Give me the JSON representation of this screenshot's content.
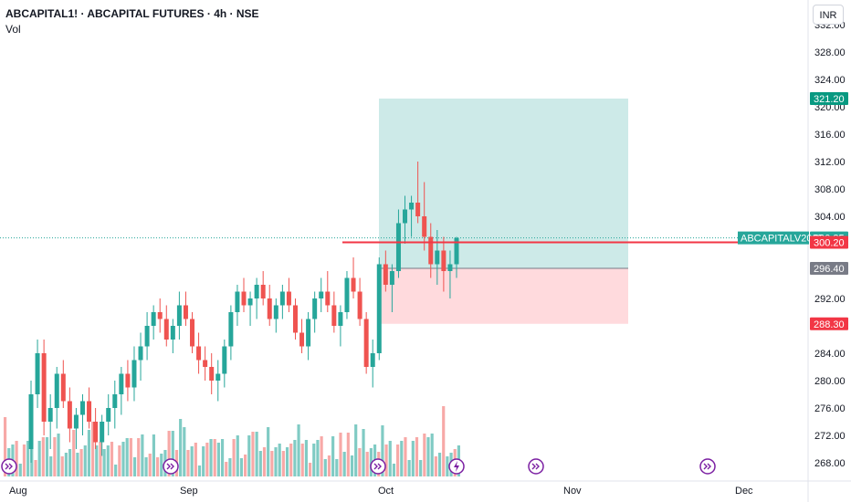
{
  "header": {
    "title": "ABCAPITAL1! · ABCAPITAL FUTURES · 4h · NSE",
    "indicator": "Vol",
    "currency": "INR"
  },
  "chart_data": {
    "type": "candlestick",
    "price_axis": {
      "ticks": [
        "332.00",
        "328.00",
        "324.00",
        "320.00",
        "316.00",
        "312.00",
        "308.00",
        "304.00",
        "300.00",
        "296.00",
        "292.00",
        "288.00",
        "284.00",
        "280.00",
        "276.00",
        "272.00",
        "268.00"
      ],
      "range": [
        266,
        334
      ]
    },
    "time_axis": {
      "labels": [
        "Aug",
        "Sep",
        "Oct",
        "Nov",
        "Dec"
      ]
    },
    "price_labels": [
      {
        "label": "321.20",
        "value": 321.2,
        "color": "#089981"
      },
      {
        "label": "300.85",
        "value": 300.85,
        "color": "#26a69a",
        "name": "ABCAPITALV2025"
      },
      {
        "label": "300.20",
        "value": 300.2,
        "color": "#f23645"
      },
      {
        "label": "296.40",
        "value": 296.4,
        "color": "#787b86"
      },
      {
        "label": "288.30",
        "value": 288.3,
        "color": "#f23645"
      }
    ],
    "position": {
      "type": "long",
      "entry": 296.4,
      "target": 321.2,
      "stop": 288.3
    },
    "horizontal_line": 300.2,
    "last_price": 300.85,
    "colors": {
      "up": "#26a69a",
      "down": "#ef5350",
      "profit_zone": "#b2dfdb",
      "loss_zone": "#ffcdd2"
    },
    "candles": [
      [
        270,
        280,
        268,
        278
      ],
      [
        278,
        286,
        276,
        284
      ],
      [
        284,
        286,
        272,
        274
      ],
      [
        274,
        278,
        270,
        276
      ],
      [
        276,
        282,
        273,
        281
      ],
      [
        281,
        283,
        276,
        277
      ],
      [
        277,
        279,
        271,
        273
      ],
      [
        273,
        276,
        270,
        275
      ],
      [
        275,
        278,
        272,
        277
      ],
      [
        277,
        279,
        273,
        274
      ],
      [
        274,
        276,
        270,
        271
      ],
      [
        271,
        275,
        269,
        274
      ],
      [
        274,
        278,
        272,
        276
      ],
      [
        276,
        280,
        273,
        278
      ],
      [
        278,
        282,
        275,
        281
      ],
      [
        281,
        283,
        277,
        279
      ],
      [
        279,
        285,
        277,
        283
      ],
      [
        283,
        287,
        280,
        285
      ],
      [
        285,
        290,
        283,
        288
      ],
      [
        288,
        291,
        286,
        290
      ],
      [
        290,
        292,
        287,
        289
      ],
      [
        289,
        291,
        285,
        286
      ],
      [
        286,
        289,
        284,
        288
      ],
      [
        288,
        293,
        286,
        291
      ],
      [
        291,
        293,
        288,
        289
      ],
      [
        289,
        290,
        284,
        285
      ],
      [
        285,
        287,
        281,
        283
      ],
      [
        283,
        285,
        280,
        282
      ],
      [
        282,
        284,
        278,
        280
      ],
      [
        280,
        283,
        277,
        281
      ],
      [
        281,
        286,
        279,
        285
      ],
      [
        285,
        291,
        283,
        290
      ],
      [
        290,
        294,
        288,
        293
      ],
      [
        293,
        295,
        290,
        291
      ],
      [
        291,
        293,
        288,
        292
      ],
      [
        292,
        295,
        289,
        294
      ],
      [
        294,
        296,
        291,
        292
      ],
      [
        292,
        294,
        288,
        289
      ],
      [
        289,
        292,
        287,
        291
      ],
      [
        291,
        294,
        289,
        293
      ],
      [
        293,
        295,
        290,
        291
      ],
      [
        291,
        292,
        286,
        287
      ],
      [
        287,
        289,
        284,
        285
      ],
      [
        285,
        290,
        283,
        289
      ],
      [
        289,
        293,
        287,
        292
      ],
      [
        292,
        295,
        290,
        293
      ],
      [
        293,
        296,
        290,
        291
      ],
      [
        291,
        293,
        287,
        288
      ],
      [
        288,
        291,
        285,
        290
      ],
      [
        290,
        296,
        289,
        295
      ],
      [
        295,
        298,
        292,
        293
      ],
      [
        293,
        295,
        288,
        289
      ],
      [
        289,
        290,
        281,
        282
      ],
      [
        282,
        286,
        279,
        284
      ],
      [
        284,
        298,
        283,
        297
      ],
      [
        297,
        299,
        293,
        294
      ],
      [
        294,
        297,
        290,
        296
      ],
      [
        296,
        305,
        295,
        303
      ],
      [
        303,
        307,
        300,
        305
      ],
      [
        305,
        307,
        301,
        306
      ],
      [
        306,
        312,
        303,
        304
      ],
      [
        304,
        309,
        299,
        301
      ],
      [
        301,
        303,
        295,
        297
      ],
      [
        297,
        302,
        294,
        299
      ],
      [
        299,
        301,
        293,
        296
      ],
      [
        296,
        299,
        292,
        297
      ],
      [
        297,
        301,
        295,
        300.85
      ]
    ],
    "volume_bars_count": 120
  },
  "icons": [
    "event-icon-1",
    "event-icon-2",
    "event-icon-3",
    "lightning-icon",
    "event-icon-4",
    "event-icon-5"
  ]
}
